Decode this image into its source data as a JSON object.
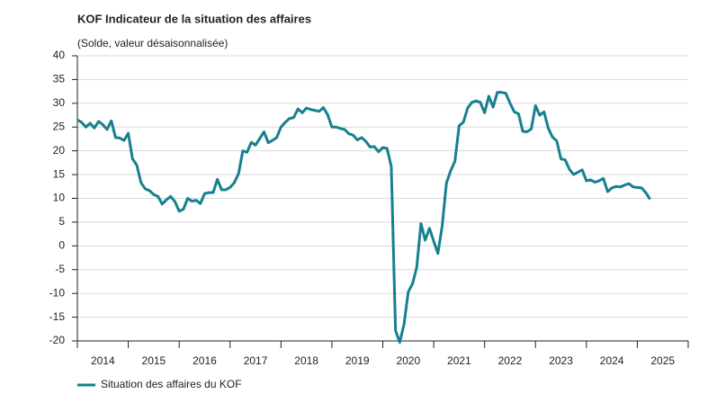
{
  "chart_data": {
    "type": "line",
    "title": "KOF Indicateur de la situation des affaires",
    "subtitle": "(Solde, valeur désaisonnalisée)",
    "xlim": [
      2014,
      2026
    ],
    "ylim": [
      -20,
      40
    ],
    "yticks": [
      -20,
      -15,
      -10,
      -5,
      0,
      5,
      10,
      15,
      20,
      25,
      30,
      35,
      40
    ],
    "xticks": [
      {
        "value": 2014.5,
        "label": "2014"
      },
      {
        "value": 2015.5,
        "label": "2015"
      },
      {
        "value": 2016.5,
        "label": "2016"
      },
      {
        "value": 2017.5,
        "label": "2017"
      },
      {
        "value": 2018.5,
        "label": "2018"
      },
      {
        "value": 2019.5,
        "label": "2019"
      },
      {
        "value": 2020.5,
        "label": "2020"
      },
      {
        "value": 2021.5,
        "label": "2021"
      },
      {
        "value": 2022.5,
        "label": "2022"
      },
      {
        "value": 2023.5,
        "label": "2023"
      },
      {
        "value": 2024.5,
        "label": "2024"
      },
      {
        "value": 2025.5,
        "label": "2025"
      }
    ],
    "xminorticks": [
      2014,
      2015,
      2016,
      2017,
      2018,
      2019,
      2020,
      2021,
      2022,
      2023,
      2024,
      2025,
      2026
    ],
    "grid": true,
    "legend": "bottom-left",
    "x": [
      2014.0,
      2014.083,
      2014.167,
      2014.25,
      2014.333,
      2014.417,
      2014.5,
      2014.583,
      2014.667,
      2014.75,
      2014.833,
      2014.917,
      2015.0,
      2015.083,
      2015.167,
      2015.25,
      2015.333,
      2015.417,
      2015.5,
      2015.583,
      2015.667,
      2015.75,
      2015.833,
      2015.917,
      2016.0,
      2016.083,
      2016.167,
      2016.25,
      2016.333,
      2016.417,
      2016.5,
      2016.583,
      2016.667,
      2016.75,
      2016.833,
      2016.917,
      2017.0,
      2017.083,
      2017.167,
      2017.25,
      2017.333,
      2017.417,
      2017.5,
      2017.583,
      2017.667,
      2017.75,
      2017.833,
      2017.917,
      2018.0,
      2018.083,
      2018.167,
      2018.25,
      2018.333,
      2018.417,
      2018.5,
      2018.583,
      2018.667,
      2018.75,
      2018.833,
      2018.917,
      2019.0,
      2019.083,
      2019.167,
      2019.25,
      2019.333,
      2019.417,
      2019.5,
      2019.583,
      2019.667,
      2019.75,
      2019.833,
      2019.917,
      2020.0,
      2020.083,
      2020.167,
      2020.25,
      2020.333,
      2020.417,
      2020.5,
      2020.583,
      2020.667,
      2020.75,
      2020.833,
      2020.917,
      2021.0,
      2021.083,
      2021.167,
      2021.25,
      2021.333,
      2021.417,
      2021.5,
      2021.583,
      2021.667,
      2021.75,
      2021.833,
      2021.917,
      2022.0,
      2022.083,
      2022.167,
      2022.25,
      2022.333,
      2022.417,
      2022.5,
      2022.583,
      2022.667,
      2022.75,
      2022.833,
      2022.917,
      2023.0,
      2023.083,
      2023.167,
      2023.25,
      2023.333,
      2023.417,
      2023.5,
      2023.583,
      2023.667,
      2023.75,
      2023.833,
      2023.917,
      2024.0,
      2024.083,
      2024.167,
      2024.25,
      2024.333,
      2024.417,
      2024.5,
      2024.583,
      2024.667,
      2024.75,
      2024.833,
      2024.917,
      2025.0,
      2025.083,
      2025.167,
      2025.25
    ],
    "series": [
      {
        "name": "Situation des affaires du KOF",
        "color": "#17808f",
        "values": [
          26.5,
          26,
          25,
          25.8,
          24.8,
          26.2,
          25.5,
          24.5,
          26.3,
          22.8,
          22.7,
          22.2,
          23.7,
          18.3,
          17,
          13.3,
          12,
          11.6,
          10.8,
          10.4,
          8.8,
          9.7,
          10.4,
          9.3,
          7.3,
          7.7,
          10,
          9.4,
          9.6,
          8.9,
          11,
          11.2,
          11.2,
          14,
          11.8,
          11.8,
          12.3,
          13.3,
          15.2,
          20,
          19.7,
          21.8,
          21.2,
          22.6,
          24,
          21.7,
          22.2,
          22.8,
          25,
          26,
          26.8,
          27,
          28.8,
          28,
          29,
          28.7,
          28.5,
          28.3,
          29.1,
          27.6,
          25,
          25,
          24.7,
          24.5,
          23.6,
          23.3,
          22.3,
          22.8,
          22,
          20.8,
          20.9,
          19.8,
          20.7,
          20.5,
          16.7,
          -17.8,
          -20.3,
          -16.5,
          -9.7,
          -8,
          -4.5,
          4.7,
          1.2,
          3.7,
          1,
          -1.6,
          4.2,
          13.2,
          15.8,
          17.8,
          25.3,
          26,
          29,
          30.2,
          30.5,
          30.2,
          28,
          31.5,
          29.2,
          32.3,
          32.3,
          32.1,
          30,
          28.2,
          27.8,
          24.1,
          24,
          24.6,
          29.5,
          27.5,
          28.2,
          24.8,
          22.9,
          22.1,
          18.3,
          18.1,
          16.1,
          15,
          15.5,
          16,
          13.7,
          13.9,
          13.4,
          13.7,
          14.2,
          11.4,
          12.2,
          12.5,
          12.4,
          12.8,
          13.1,
          12.4,
          12.3,
          12.2,
          11.2,
          9.8
        ]
      }
    ]
  }
}
